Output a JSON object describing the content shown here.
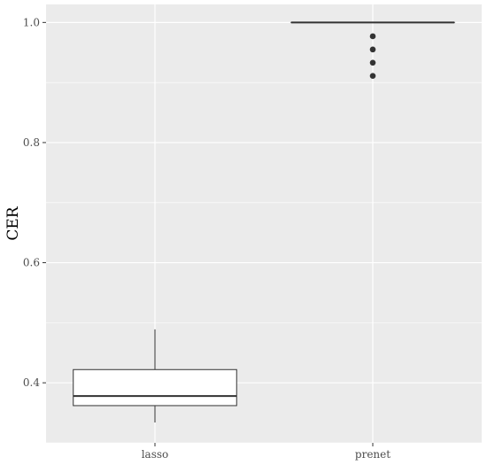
{
  "chart_data": {
    "type": "box",
    "title": "",
    "xlabel": "",
    "ylabel": "CER",
    "ylim": [
      0.3,
      1.03
    ],
    "y_ticks": [
      0.4,
      0.6,
      0.8,
      1.0
    ],
    "y_tick_labels": [
      "0.4",
      "0.6",
      "0.8",
      "1.0"
    ],
    "categories": [
      "lasso",
      "prenet"
    ],
    "boxes": [
      {
        "category": "lasso",
        "whisker_low": 0.334,
        "q1": 0.362,
        "median": 0.378,
        "q3": 0.422,
        "whisker_high": 0.489,
        "outliers": []
      },
      {
        "category": "prenet",
        "whisker_low": 1.0,
        "q1": 1.0,
        "median": 1.0,
        "q3": 1.0,
        "whisker_high": 1.0,
        "outliers": [
          0.977,
          0.955,
          0.933,
          0.911
        ]
      }
    ],
    "grid": true,
    "legend": "none",
    "colors": {
      "panel": "#ebebeb",
      "grid": "#ffffff",
      "box_fill": "#ffffff",
      "box_line": "#333333",
      "outlier": "#333333"
    }
  }
}
